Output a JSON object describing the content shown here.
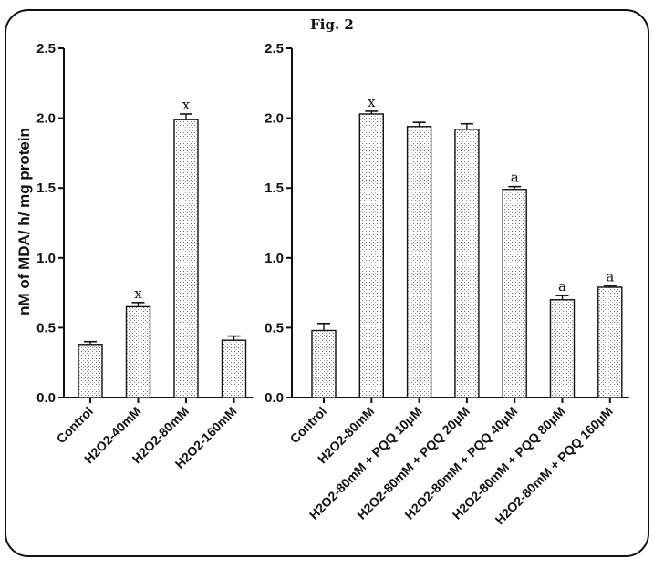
{
  "figure_title": "Fig. 2",
  "chart_data": [
    {
      "type": "bar",
      "ylabel": "nM of MDA/ h/ mg protein",
      "ylim": [
        0,
        2.5
      ],
      "yticks": [
        "0.0",
        "0.5",
        "1.0",
        "1.5",
        "2.0",
        "2.5"
      ],
      "categories": [
        "Control",
        "H2O2-40mM",
        "H2O2-80mM",
        "H2O2-160mM"
      ],
      "values": [
        0.38,
        0.65,
        1.99,
        0.41
      ],
      "errors": [
        0.02,
        0.03,
        0.04,
        0.03
      ],
      "annotations": [
        "",
        "x",
        "x",
        ""
      ],
      "bar_fill": "dotted-gray"
    },
    {
      "type": "bar",
      "ylim": [
        0,
        2.5
      ],
      "yticks": [
        "0.0",
        "0.5",
        "1.0",
        "1.5",
        "2.0",
        "2.5"
      ],
      "categories": [
        "Control",
        "H2O2-80mM",
        "H2O2-80mM + PQQ 10μM",
        "H2O2-80mM + PQQ 20μM",
        "H2O2-80mM + PQQ 40μM",
        "H2O2-80mM + PQQ 80μM",
        "H2O2-80mM + PQQ 160μM"
      ],
      "values": [
        0.48,
        2.03,
        1.94,
        1.92,
        1.49,
        0.7,
        0.79
      ],
      "errors": [
        0.05,
        0.02,
        0.03,
        0.04,
        0.02,
        0.03,
        0.01
      ],
      "annotations": [
        "",
        "x",
        "",
        "",
        "a",
        "a",
        "a"
      ],
      "bar_fill": "dotted-gray"
    }
  ]
}
